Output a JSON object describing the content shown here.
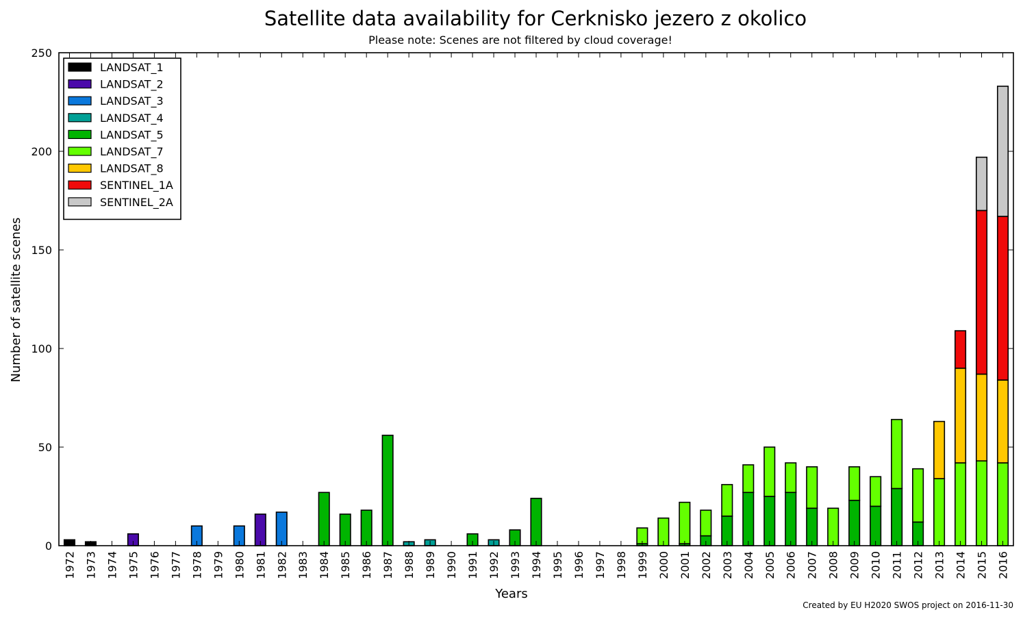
{
  "chart_data": {
    "type": "bar",
    "stacked": true,
    "title": "Satellite data availability for Cerknisko jezero z okolico",
    "subtitle": "Please note: Scenes are not filtered by cloud coverage!",
    "xlabel": "Years",
    "ylabel": "Number of satellite scenes",
    "footer": "Created by EU H2020 SWOS project on 2016-11-30",
    "ylim": [
      0,
      250
    ],
    "yticks": [
      0,
      50,
      100,
      150,
      200,
      250
    ],
    "legend_position": "top-left",
    "grid": false,
    "categories": [
      "1972",
      "1973",
      "1974",
      "1975",
      "1976",
      "1977",
      "1978",
      "1979",
      "1980",
      "1981",
      "1982",
      "1983",
      "1984",
      "1985",
      "1986",
      "1987",
      "1988",
      "1989",
      "1990",
      "1991",
      "1992",
      "1993",
      "1994",
      "1995",
      "1996",
      "1997",
      "1998",
      "1999",
      "2000",
      "2001",
      "2002",
      "2003",
      "2004",
      "2005",
      "2006",
      "2007",
      "2008",
      "2009",
      "2010",
      "2011",
      "2012",
      "2013",
      "2014",
      "2015",
      "2016"
    ],
    "series": [
      {
        "name": "LANDSAT_1",
        "color": "#000000",
        "values": [
          3,
          2,
          0,
          0,
          0,
          0,
          0,
          0,
          0,
          0,
          0,
          0,
          0,
          0,
          0,
          0,
          0,
          0,
          0,
          0,
          0,
          0,
          0,
          0,
          0,
          0,
          0,
          0,
          0,
          0,
          0,
          0,
          0,
          0,
          0,
          0,
          0,
          0,
          0,
          0,
          0,
          0,
          0,
          0,
          0
        ]
      },
      {
        "name": "LANDSAT_2",
        "color": "#4b0aaa",
        "values": [
          0,
          0,
          0,
          6,
          0,
          0,
          0,
          0,
          0,
          16,
          0,
          0,
          0,
          0,
          0,
          0,
          0,
          0,
          0,
          0,
          0,
          0,
          0,
          0,
          0,
          0,
          0,
          0,
          0,
          0,
          0,
          0,
          0,
          0,
          0,
          0,
          0,
          0,
          0,
          0,
          0,
          0,
          0,
          0,
          0
        ]
      },
      {
        "name": "LANDSAT_3",
        "color": "#0a78dc",
        "values": [
          0,
          0,
          0,
          0,
          0,
          0,
          10,
          0,
          10,
          0,
          17,
          0,
          0,
          0,
          0,
          0,
          0,
          0,
          0,
          0,
          0,
          0,
          0,
          0,
          0,
          0,
          0,
          0,
          0,
          0,
          0,
          0,
          0,
          0,
          0,
          0,
          0,
          0,
          0,
          0,
          0,
          0,
          0,
          0,
          0
        ]
      },
      {
        "name": "LANDSAT_4",
        "color": "#00a096",
        "values": [
          0,
          0,
          0,
          0,
          0,
          0,
          0,
          0,
          0,
          0,
          0,
          0,
          0,
          0,
          0,
          0,
          2,
          3,
          0,
          0,
          3,
          0,
          0,
          0,
          0,
          0,
          0,
          0,
          0,
          0,
          0,
          0,
          0,
          0,
          0,
          0,
          0,
          0,
          0,
          0,
          0,
          0,
          0,
          0,
          0
        ]
      },
      {
        "name": "LANDSAT_5",
        "color": "#00b400",
        "values": [
          0,
          0,
          0,
          0,
          0,
          0,
          0,
          0,
          0,
          0,
          0,
          0,
          27,
          16,
          18,
          56,
          0,
          0,
          0,
          6,
          0,
          8,
          24,
          0,
          0,
          0,
          0,
          1,
          0,
          1,
          5,
          15,
          27,
          25,
          27,
          19,
          0,
          23,
          20,
          29,
          12,
          0,
          0,
          0,
          0
        ]
      },
      {
        "name": "LANDSAT_7",
        "color": "#64ff00",
        "values": [
          0,
          0,
          0,
          0,
          0,
          0,
          0,
          0,
          0,
          0,
          0,
          0,
          0,
          0,
          0,
          0,
          0,
          0,
          0,
          0,
          0,
          0,
          0,
          0,
          0,
          0,
          0,
          8,
          14,
          21,
          13,
          16,
          14,
          25,
          15,
          21,
          19,
          17,
          15,
          35,
          27,
          34,
          42,
          43,
          42
        ]
      },
      {
        "name": "LANDSAT_8",
        "color": "#ffc800",
        "values": [
          0,
          0,
          0,
          0,
          0,
          0,
          0,
          0,
          0,
          0,
          0,
          0,
          0,
          0,
          0,
          0,
          0,
          0,
          0,
          0,
          0,
          0,
          0,
          0,
          0,
          0,
          0,
          0,
          0,
          0,
          0,
          0,
          0,
          0,
          0,
          0,
          0,
          0,
          0,
          0,
          0,
          29,
          48,
          44,
          42
        ]
      },
      {
        "name": "SENTINEL_1A",
        "color": "#f00a0a",
        "values": [
          0,
          0,
          0,
          0,
          0,
          0,
          0,
          0,
          0,
          0,
          0,
          0,
          0,
          0,
          0,
          0,
          0,
          0,
          0,
          0,
          0,
          0,
          0,
          0,
          0,
          0,
          0,
          0,
          0,
          0,
          0,
          0,
          0,
          0,
          0,
          0,
          0,
          0,
          0,
          0,
          0,
          0,
          19,
          83,
          83
        ]
      },
      {
        "name": "SENTINEL_2A",
        "color": "#c8c8c8",
        "values": [
          0,
          0,
          0,
          0,
          0,
          0,
          0,
          0,
          0,
          0,
          0,
          0,
          0,
          0,
          0,
          0,
          0,
          0,
          0,
          0,
          0,
          0,
          0,
          0,
          0,
          0,
          0,
          0,
          0,
          0,
          0,
          0,
          0,
          0,
          0,
          0,
          0,
          0,
          0,
          0,
          0,
          0,
          0,
          27,
          66
        ]
      }
    ]
  }
}
